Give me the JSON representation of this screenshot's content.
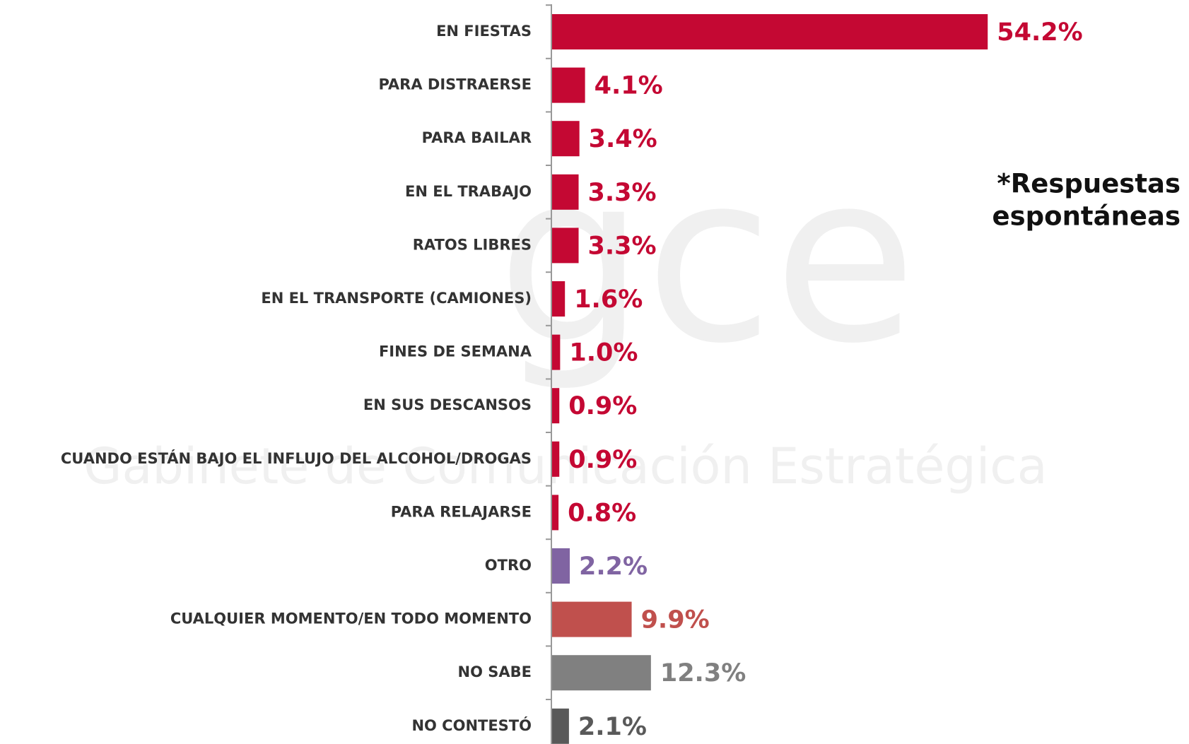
{
  "chart_data": {
    "type": "bar",
    "orientation": "horizontal",
    "categories": [
      "EN FIESTAS",
      "PARA DISTRAERSE",
      "PARA BAILAR",
      "EN EL TRABAJO",
      "RATOS LIBRES",
      "EN EL TRANSPORTE (CAMIONES)",
      "FINES DE SEMANA",
      "EN SUS DESCANSOS",
      "CUANDO ESTÁN BAJO EL INFLUJO DEL ALCOHOL/DROGAS",
      "PARA RELAJARSE",
      "OTRO",
      "CUALQUIER MOMENTO/EN TODO MOMENTO",
      "NO SABE",
      "NO CONTESTÓ"
    ],
    "values": [
      54.2,
      4.1,
      3.4,
      3.3,
      3.3,
      1.6,
      1.0,
      0.9,
      0.9,
      0.8,
      2.2,
      9.9,
      12.3,
      2.1
    ],
    "value_labels": [
      "54.2%",
      "4.1%",
      "3.4%",
      "3.3%",
      "3.3%",
      "1.6%",
      "1.0%",
      "0.9%",
      "0.9%",
      "0.8%",
      "2.2%",
      "9.9%",
      "12.3%",
      "2.1%"
    ],
    "colors": [
      "#c40833",
      "#c40833",
      "#c40833",
      "#c40833",
      "#c40833",
      "#c40833",
      "#c40833",
      "#c40833",
      "#c40833",
      "#c40833",
      "#8064a2",
      "#c0504d",
      "#808080",
      "#595959"
    ],
    "annotation": [
      "*Respuestas",
      "espontáneas"
    ],
    "watermark": [
      "gce",
      "Gabinete de Comunicación Estratégica"
    ]
  }
}
